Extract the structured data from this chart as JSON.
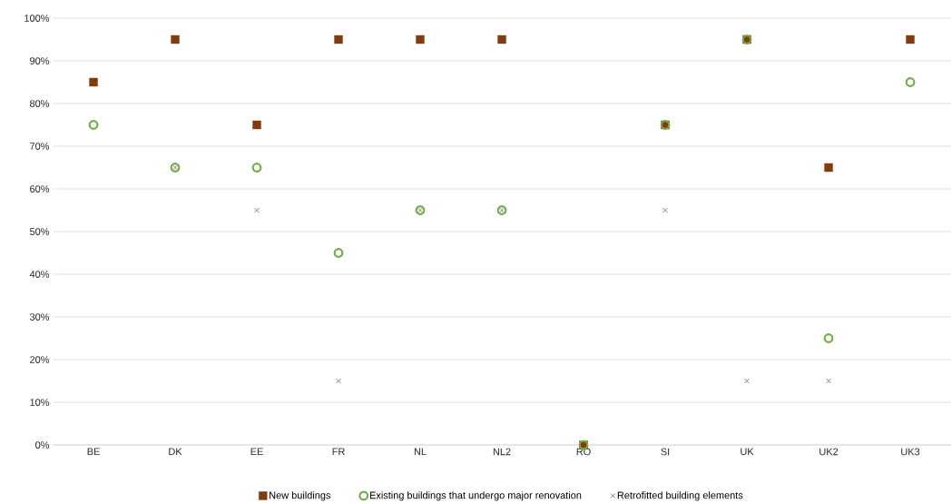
{
  "chart_data": {
    "type": "scatter",
    "categories": [
      "BE",
      "DK",
      "EE",
      "FR",
      "NL",
      "NL2",
      "RO",
      "SI",
      "UK",
      "UK2",
      "UK3"
    ],
    "series": [
      {
        "name": "New buildings",
        "color": "#843c0c",
        "marker": "square",
        "values": [
          85,
          95,
          75,
          95,
          95,
          95,
          0,
          75,
          95,
          65,
          95
        ]
      },
      {
        "name": "Existing buildings that undergo major renovation",
        "color": "#70ad47",
        "marker": "circle",
        "values": [
          75,
          65,
          65,
          45,
          55,
          55,
          0,
          75,
          95,
          25,
          85
        ]
      },
      {
        "name": "Retrofitted building elements",
        "color": "#7f7f7f",
        "marker": "cross",
        "values": [
          null,
          65,
          55,
          15,
          55,
          55,
          null,
          55,
          15,
          15,
          null
        ]
      }
    ],
    "ylim": [
      0,
      100
    ],
    "yticks": [
      {
        "value": 0,
        "label": "0%"
      },
      {
        "value": 10,
        "label": "10%"
      },
      {
        "value": 20,
        "label": "20%"
      },
      {
        "value": 30,
        "label": "30%"
      },
      {
        "value": 40,
        "label": "40%"
      },
      {
        "value": 50,
        "label": "50%"
      },
      {
        "value": 60,
        "label": "60%"
      },
      {
        "value": 70,
        "label": "70%"
      },
      {
        "value": 80,
        "label": "80%"
      },
      {
        "value": 90,
        "label": "90%"
      },
      {
        "value": 100,
        "label": "100%"
      }
    ],
    "grid": "y",
    "legend": "bottom"
  }
}
